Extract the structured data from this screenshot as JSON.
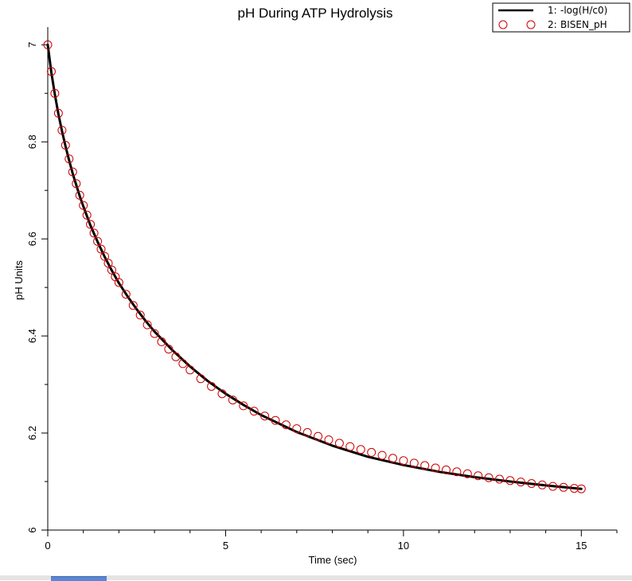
{
  "chart_data": {
    "type": "line",
    "title": "pH During ATP Hydrolysis",
    "xlabel": "Time (sec)",
    "ylabel": "pH Units",
    "xlim": [
      0,
      16
    ],
    "ylim": [
      6,
      7.03
    ],
    "x_ticks": [
      0,
      5,
      10,
      15
    ],
    "x_tick_labels": [
      "0",
      "5",
      "10",
      "15"
    ],
    "x_minor_step": 1,
    "y_ticks": [
      6,
      6.2,
      6.4,
      6.6,
      6.8,
      7
    ],
    "y_tick_labels": [
      "6",
      "6.2",
      "6.4",
      "6.6",
      "6.8",
      "7"
    ],
    "y_minor_step": 0.1,
    "grid": false,
    "legend_position": "top-right",
    "legend_indices": [
      "1:",
      "2:"
    ],
    "series": [
      {
        "name": "-log(H/c0)",
        "style": "line",
        "color": "#000000",
        "x": [
          0,
          0.1,
          0.2,
          0.3,
          0.4,
          0.5,
          0.6,
          0.7,
          0.8,
          0.9,
          1.0,
          1.2,
          1.4,
          1.6,
          1.8,
          2.0,
          2.25,
          2.5,
          2.75,
          3.0,
          3.5,
          4.0,
          4.5,
          5.0,
          5.5,
          6.0,
          7.0,
          8.0,
          9.0,
          10.0,
          11.0,
          12.0,
          13.0,
          14.0,
          15.0
        ],
        "y": [
          7.0,
          6.943,
          6.898,
          6.857,
          6.822,
          6.791,
          6.762,
          6.735,
          6.711,
          6.688,
          6.667,
          6.628,
          6.594,
          6.563,
          6.535,
          6.509,
          6.481,
          6.455,
          6.431,
          6.409,
          6.371,
          6.337,
          6.307,
          6.281,
          6.258,
          6.237,
          6.202,
          6.174,
          6.151,
          6.134,
          6.12,
          6.109,
          6.1,
          6.092,
          6.085
        ]
      },
      {
        "name": "BISEN_pH",
        "style": "markers",
        "marker": "open-circle",
        "color": "#cc0000",
        "x": [
          0,
          0.1,
          0.2,
          0.3,
          0.4,
          0.5,
          0.6,
          0.7,
          0.8,
          0.9,
          1.0,
          1.1,
          1.2,
          1.3,
          1.4,
          1.5,
          1.6,
          1.7,
          1.8,
          1.9,
          2.0,
          2.2,
          2.4,
          2.6,
          2.8,
          3.0,
          3.2,
          3.4,
          3.6,
          3.8,
          4.0,
          4.3,
          4.6,
          4.9,
          5.2,
          5.5,
          5.8,
          6.1,
          6.4,
          6.7,
          7.0,
          7.3,
          7.6,
          7.9,
          8.2,
          8.5,
          8.8,
          9.1,
          9.4,
          9.7,
          10.0,
          10.3,
          10.6,
          10.9,
          11.2,
          11.5,
          11.8,
          12.1,
          12.4,
          12.7,
          13.0,
          13.3,
          13.6,
          13.9,
          14.2,
          14.5,
          14.8,
          15.0
        ],
        "y": [
          7.0,
          6.945,
          6.9,
          6.859,
          6.824,
          6.793,
          6.765,
          6.738,
          6.714,
          6.69,
          6.669,
          6.649,
          6.63,
          6.612,
          6.595,
          6.579,
          6.564,
          6.55,
          6.536,
          6.522,
          6.51,
          6.486,
          6.463,
          6.443,
          6.423,
          6.405,
          6.388,
          6.373,
          6.357,
          6.343,
          6.33,
          6.312,
          6.296,
          6.281,
          6.268,
          6.256,
          6.245,
          6.235,
          6.226,
          6.217,
          6.209,
          6.201,
          6.193,
          6.186,
          6.179,
          6.172,
          6.166,
          6.16,
          6.154,
          6.148,
          6.143,
          6.138,
          6.133,
          6.128,
          6.124,
          6.12,
          6.116,
          6.112,
          6.108,
          6.105,
          6.102,
          6.099,
          6.096,
          6.093,
          6.09,
          6.088,
          6.086,
          6.085
        ]
      }
    ]
  }
}
